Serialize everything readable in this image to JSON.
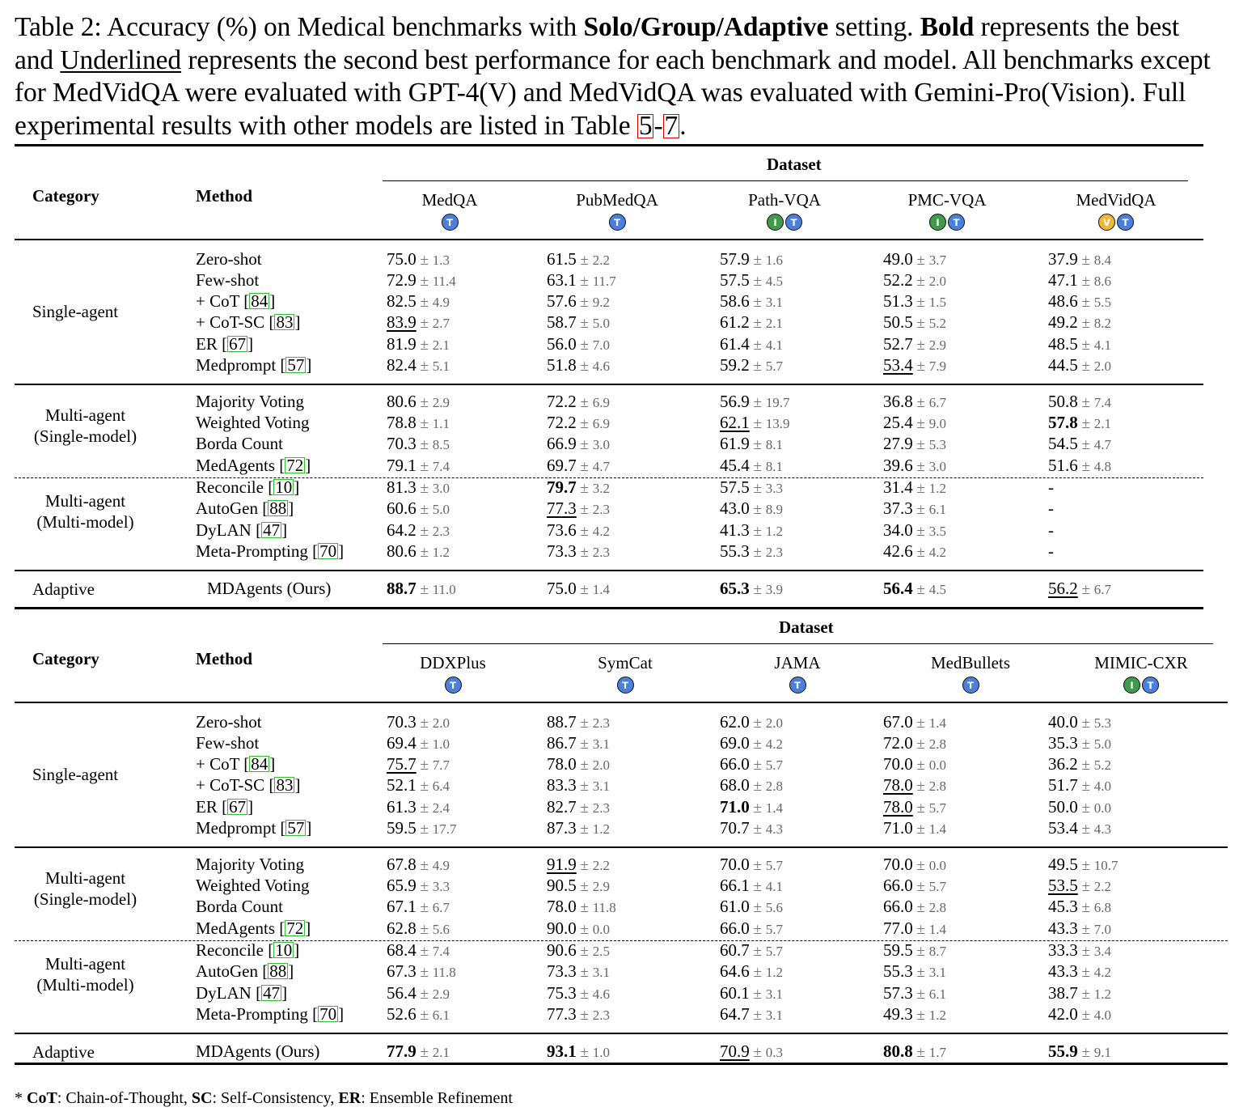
{
  "caption": {
    "p1": "Table 2: Accuracy (%) on Medical benchmarks with ",
    "b1": "Solo/Group/Adaptive",
    "p2": " setting. ",
    "b2": "Bold",
    "p3": " represents the best and ",
    "u1": "Underlined",
    "p4": " represents the second best performance for each benchmark and model. All benchmarks except for MedVidQA were evaluated with GPT-4(V) and MedVidQA was evaluated with Gemini-Pro(Vision). Full experimental results with other models are listed in Table ",
    "ref1": "5",
    "dash": "-",
    "ref2": "7",
    "end": "."
  },
  "headers": {
    "dataset": "Dataset",
    "category": "Category",
    "method": "Method"
  },
  "categories": {
    "single": "Single-agent",
    "multi_single_1": "Multi-agent",
    "multi_single_2": "(Single-model)",
    "multi_multi_1": "Multi-agent",
    "multi_multi_2": "(Multi-model)",
    "adaptive": "Adaptive"
  },
  "methods": [
    {
      "name": "Zero-shot",
      "cite": ""
    },
    {
      "name": "Few-shot",
      "cite": ""
    },
    {
      "name": "+ CoT [",
      "cite": "84",
      "close": "]"
    },
    {
      "name": "+ CoT-SC [",
      "cite": "83",
      "close": "]"
    },
    {
      "name": "ER [",
      "cite": "67",
      "close": "]"
    },
    {
      "name": "Medprompt [",
      "cite": "57",
      "close": "]"
    },
    {
      "name": "Majority Voting",
      "cite": ""
    },
    {
      "name": "Weighted Voting",
      "cite": ""
    },
    {
      "name": "Borda Count",
      "cite": ""
    },
    {
      "name": "MedAgents [",
      "cite": "72",
      "close": "]"
    },
    {
      "name": "Reconcile [",
      "cite": "10",
      "close": "]"
    },
    {
      "name": "AutoGen [",
      "cite": "88",
      "close": "]"
    },
    {
      "name": "DyLAN [",
      "cite": "47",
      "close": "]"
    },
    {
      "name": "Meta-Prompting [",
      "cite": "70",
      "close": "]"
    },
    {
      "name": "MDAgents (Ours)",
      "cite": ""
    }
  ],
  "tables": [
    {
      "datasets": [
        {
          "name": "MedQA",
          "badges": [
            "T"
          ]
        },
        {
          "name": "PubMedQA",
          "badges": [
            "T"
          ]
        },
        {
          "name": "Path-VQA",
          "badges": [
            "I",
            "T"
          ]
        },
        {
          "name": "PMC-VQA",
          "badges": [
            "I",
            "T"
          ]
        },
        {
          "name": "MedVidQA",
          "badges": [
            "V",
            "T"
          ]
        }
      ],
      "rows": [
        [
          [
            "75.0",
            "1.3",
            ""
          ],
          [
            "61.5",
            "2.2",
            ""
          ],
          [
            "57.9",
            "1.6",
            ""
          ],
          [
            "49.0",
            "3.7",
            ""
          ],
          [
            "37.9",
            "8.4",
            ""
          ]
        ],
        [
          [
            "72.9",
            "11.4",
            ""
          ],
          [
            "63.1",
            "11.7",
            ""
          ],
          [
            "57.5",
            "4.5",
            ""
          ],
          [
            "52.2",
            "2.0",
            ""
          ],
          [
            "47.1",
            "8.6",
            ""
          ]
        ],
        [
          [
            "82.5",
            "4.9",
            ""
          ],
          [
            "57.6",
            "9.2",
            ""
          ],
          [
            "58.6",
            "3.1",
            ""
          ],
          [
            "51.3",
            "1.5",
            ""
          ],
          [
            "48.6",
            "5.5",
            ""
          ]
        ],
        [
          [
            "83.9",
            "2.7",
            "u"
          ],
          [
            "58.7",
            "5.0",
            ""
          ],
          [
            "61.2",
            "2.1",
            ""
          ],
          [
            "50.5",
            "5.2",
            ""
          ],
          [
            "49.2",
            "8.2",
            ""
          ]
        ],
        [
          [
            "81.9",
            "2.1",
            ""
          ],
          [
            "56.0",
            "7.0",
            ""
          ],
          [
            "61.4",
            "4.1",
            ""
          ],
          [
            "52.7",
            "2.9",
            ""
          ],
          [
            "48.5",
            "4.1",
            ""
          ]
        ],
        [
          [
            "82.4",
            "5.1",
            ""
          ],
          [
            "51.8",
            "4.6",
            ""
          ],
          [
            "59.2",
            "5.7",
            ""
          ],
          [
            "53.4",
            "7.9",
            "u"
          ],
          [
            "44.5",
            "2.0",
            ""
          ]
        ],
        [
          [
            "80.6",
            "2.9",
            ""
          ],
          [
            "72.2",
            "6.9",
            ""
          ],
          [
            "56.9",
            "19.7",
            ""
          ],
          [
            "36.8",
            "6.7",
            ""
          ],
          [
            "50.8",
            "7.4",
            ""
          ]
        ],
        [
          [
            "78.8",
            "1.1",
            ""
          ],
          [
            "72.2",
            "6.9",
            ""
          ],
          [
            "62.1",
            "13.9",
            "u"
          ],
          [
            "25.4",
            "9.0",
            ""
          ],
          [
            "57.8",
            "2.1",
            "b"
          ]
        ],
        [
          [
            "70.3",
            "8.5",
            ""
          ],
          [
            "66.9",
            "3.0",
            ""
          ],
          [
            "61.9",
            "8.1",
            ""
          ],
          [
            "27.9",
            "5.3",
            ""
          ],
          [
            "54.5",
            "4.7",
            ""
          ]
        ],
        [
          [
            "79.1",
            "7.4",
            ""
          ],
          [
            "69.7",
            "4.7",
            ""
          ],
          [
            "45.4",
            "8.1",
            ""
          ],
          [
            "39.6",
            "3.0",
            ""
          ],
          [
            "51.6",
            "4.8",
            ""
          ]
        ],
        [
          [
            "81.3",
            "3.0",
            ""
          ],
          [
            "79.7",
            "3.2",
            "b"
          ],
          [
            "57.5",
            "3.3",
            ""
          ],
          [
            "31.4",
            "1.2",
            ""
          ],
          [
            "-",
            "",
            ""
          ]
        ],
        [
          [
            "60.6",
            "5.0",
            ""
          ],
          [
            "77.3",
            "2.3",
            "u"
          ],
          [
            "43.0",
            "8.9",
            ""
          ],
          [
            "37.3",
            "6.1",
            ""
          ],
          [
            "-",
            "",
            ""
          ]
        ],
        [
          [
            "64.2",
            "2.3",
            ""
          ],
          [
            "73.6",
            "4.2",
            ""
          ],
          [
            "41.3",
            "1.2",
            ""
          ],
          [
            "34.0",
            "3.5",
            ""
          ],
          [
            "-",
            "",
            ""
          ]
        ],
        [
          [
            "80.6",
            "1.2",
            ""
          ],
          [
            "73.3",
            "2.3",
            ""
          ],
          [
            "55.3",
            "2.3",
            ""
          ],
          [
            "42.6",
            "4.2",
            ""
          ],
          [
            "-",
            "",
            ""
          ]
        ],
        [
          [
            "88.7",
            "11.0",
            "b"
          ],
          [
            "75.0",
            "1.4",
            ""
          ],
          [
            "65.3",
            "3.9",
            "b"
          ],
          [
            "56.4",
            "4.5",
            "b"
          ],
          [
            "56.2",
            "6.7",
            "u"
          ]
        ]
      ]
    },
    {
      "datasets": [
        {
          "name": "DDXPlus",
          "badges": [
            "T"
          ]
        },
        {
          "name": "SymCat",
          "badges": [
            "T"
          ]
        },
        {
          "name": "JAMA",
          "badges": [
            "T"
          ]
        },
        {
          "name": "MedBullets",
          "badges": [
            "T"
          ]
        },
        {
          "name": "MIMIC-CXR",
          "badges": [
            "I",
            "T"
          ]
        }
      ],
      "rows": [
        [
          [
            "70.3",
            "2.0",
            ""
          ],
          [
            "88.7",
            "2.3",
            ""
          ],
          [
            "62.0",
            "2.0",
            ""
          ],
          [
            "67.0",
            "1.4",
            ""
          ],
          [
            "40.0",
            "5.3",
            ""
          ]
        ],
        [
          [
            "69.4",
            "1.0",
            ""
          ],
          [
            "86.7",
            "3.1",
            ""
          ],
          [
            "69.0",
            "4.2",
            ""
          ],
          [
            "72.0",
            "2.8",
            ""
          ],
          [
            "35.3",
            "5.0",
            ""
          ]
        ],
        [
          [
            "75.7",
            "7.7",
            "u"
          ],
          [
            "78.0",
            "2.0",
            ""
          ],
          [
            "66.0",
            "5.7",
            ""
          ],
          [
            "70.0",
            "0.0",
            ""
          ],
          [
            "36.2",
            "5.2",
            ""
          ]
        ],
        [
          [
            "52.1",
            "6.4",
            ""
          ],
          [
            "83.3",
            "3.1",
            ""
          ],
          [
            "68.0",
            "2.8",
            ""
          ],
          [
            "78.0",
            "2.8",
            "u"
          ],
          [
            "51.7",
            "4.0",
            ""
          ]
        ],
        [
          [
            "61.3",
            "2.4",
            ""
          ],
          [
            "82.7",
            "2.3",
            ""
          ],
          [
            "71.0",
            "1.4",
            "b"
          ],
          [
            "78.0",
            "5.7",
            "u"
          ],
          [
            "50.0",
            "0.0",
            ""
          ]
        ],
        [
          [
            "59.5",
            "17.7",
            ""
          ],
          [
            "87.3",
            "1.2",
            ""
          ],
          [
            "70.7",
            "4.3",
            ""
          ],
          [
            "71.0",
            "1.4",
            ""
          ],
          [
            "53.4",
            "4.3",
            ""
          ]
        ],
        [
          [
            "67.8",
            "4.9",
            ""
          ],
          [
            "91.9",
            "2.2",
            "u"
          ],
          [
            "70.0",
            "5.7",
            ""
          ],
          [
            "70.0",
            "0.0",
            ""
          ],
          [
            "49.5",
            "10.7",
            ""
          ]
        ],
        [
          [
            "65.9",
            "3.3",
            ""
          ],
          [
            "90.5",
            "2.9",
            ""
          ],
          [
            "66.1",
            "4.1",
            ""
          ],
          [
            "66.0",
            "5.7",
            ""
          ],
          [
            "53.5",
            "2.2",
            "u"
          ]
        ],
        [
          [
            "67.1",
            "6.7",
            ""
          ],
          [
            "78.0",
            "11.8",
            ""
          ],
          [
            "61.0",
            "5.6",
            ""
          ],
          [
            "66.0",
            "2.8",
            ""
          ],
          [
            "45.3",
            "6.8",
            ""
          ]
        ],
        [
          [
            "62.8",
            "5.6",
            ""
          ],
          [
            "90.0",
            "0.0",
            ""
          ],
          [
            "66.0",
            "5.7",
            ""
          ],
          [
            "77.0",
            "1.4",
            ""
          ],
          [
            "43.3",
            "7.0",
            ""
          ]
        ],
        [
          [
            "68.4",
            "7.4",
            ""
          ],
          [
            "90.6",
            "2.5",
            ""
          ],
          [
            "60.7",
            "5.7",
            ""
          ],
          [
            "59.5",
            "8.7",
            ""
          ],
          [
            "33.3",
            "3.4",
            ""
          ]
        ],
        [
          [
            "67.3",
            "11.8",
            ""
          ],
          [
            "73.3",
            "3.1",
            ""
          ],
          [
            "64.6",
            "1.2",
            ""
          ],
          [
            "55.3",
            "3.1",
            ""
          ],
          [
            "43.3",
            "4.2",
            ""
          ]
        ],
        [
          [
            "56.4",
            "2.9",
            ""
          ],
          [
            "75.3",
            "4.6",
            ""
          ],
          [
            "60.1",
            "3.1",
            ""
          ],
          [
            "57.3",
            "6.1",
            ""
          ],
          [
            "38.7",
            "1.2",
            ""
          ]
        ],
        [
          [
            "52.6",
            "6.1",
            ""
          ],
          [
            "77.3",
            "2.3",
            ""
          ],
          [
            "64.7",
            "3.1",
            ""
          ],
          [
            "49.3",
            "1.2",
            ""
          ],
          [
            "42.0",
            "4.0",
            ""
          ]
        ],
        [
          [
            "77.9",
            "2.1",
            "b"
          ],
          [
            "93.1",
            "1.0",
            "b"
          ],
          [
            "70.9",
            "0.3",
            "u"
          ],
          [
            "80.8",
            "1.7",
            "b"
          ],
          [
            "55.9",
            "9.1",
            "b"
          ]
        ]
      ]
    }
  ],
  "footnote": {
    "star": "* ",
    "k1": "CoT",
    "v1": ": Chain-of-Thought, ",
    "k2": "SC",
    "v2": ": Self-Consistency, ",
    "k3": "ER",
    "v3": ": Ensemble Refinement"
  },
  "colors": {
    "badge_T": "#4a7fdc",
    "badge_I": "#3f9a4c",
    "badge_V": "#f0b733",
    "citation_box": "#31c131",
    "table_ref_box": "#e00000"
  }
}
